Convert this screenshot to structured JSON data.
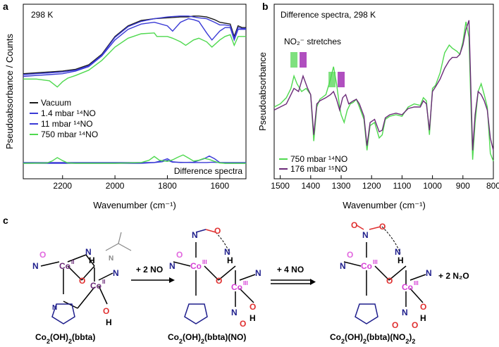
{
  "panel_labels": {
    "a": "a",
    "b": "b",
    "c": "c"
  },
  "colors": {
    "black": "#1a1a1a",
    "blue": "#3a3ad6",
    "green": "#4fd94f",
    "purple": "#6b2a78",
    "magenta": "#d63fd6",
    "highlight_green": "#7fe07f",
    "highlight_purple": "#b04fbf",
    "red": "#e03030",
    "navy": "#1e1e8c",
    "pink": "#e26adf"
  },
  "chart_data": [
    {
      "panel": "a",
      "type": "line",
      "annotation": "298 K",
      "xlabel": "Wavenumber (cm⁻¹)",
      "ylabel": "Pseudoabsorbance / Counts",
      "xlim": [
        2350,
        1500
      ],
      "x_reversed": true,
      "xticks": [
        2200,
        2000,
        1800,
        1600
      ],
      "xtick_labels": [
        "2200",
        "2000",
        "1800",
        "1600"
      ],
      "inset_label": "Difference spectra",
      "legend_position": "left-middle",
      "series": [
        {
          "name": "Vacuum",
          "color": "#1a1a1a",
          "group": "main",
          "x": [
            2350,
            2300,
            2250,
            2200,
            2150,
            2100,
            2050,
            2000,
            1950,
            1900,
            1850,
            1800,
            1750,
            1720,
            1700,
            1680,
            1650,
            1620,
            1600,
            1580,
            1560,
            1545,
            1530,
            1515,
            1500
          ],
          "y": [
            0.28,
            0.29,
            0.3,
            0.31,
            0.33,
            0.38,
            0.5,
            0.7,
            0.82,
            0.88,
            0.9,
            0.91,
            0.92,
            0.92,
            0.93,
            0.93,
            0.92,
            0.89,
            0.86,
            0.85,
            0.84,
            0.7,
            0.82,
            0.8,
            0.8
          ]
        },
        {
          "name": "1.4 mbar ¹⁴NO",
          "color": "#3a3ad6",
          "group": "main",
          "x": [
            2350,
            2300,
            2250,
            2200,
            2150,
            2100,
            2050,
            2000,
            1950,
            1900,
            1850,
            1800,
            1750,
            1720,
            1700,
            1680,
            1650,
            1620,
            1600,
            1580,
            1560,
            1545,
            1530,
            1515,
            1500
          ],
          "y": [
            0.27,
            0.28,
            0.29,
            0.3,
            0.32,
            0.37,
            0.49,
            0.69,
            0.81,
            0.87,
            0.9,
            0.92,
            0.93,
            0.93,
            0.92,
            0.91,
            0.9,
            0.86,
            0.83,
            0.83,
            0.82,
            0.68,
            0.8,
            0.79,
            0.79
          ]
        },
        {
          "name": "11 mbar ¹⁴NO",
          "color": "#3a3ad6",
          "group": "main",
          "x": [
            2350,
            2300,
            2250,
            2200,
            2150,
            2100,
            2050,
            2000,
            1950,
            1900,
            1850,
            1800,
            1780,
            1750,
            1720,
            1700,
            1680,
            1650,
            1630,
            1600,
            1580,
            1560,
            1545,
            1530,
            1500
          ],
          "y": [
            0.25,
            0.26,
            0.27,
            0.28,
            0.31,
            0.36,
            0.48,
            0.66,
            0.78,
            0.84,
            0.86,
            0.82,
            0.76,
            0.86,
            0.9,
            0.89,
            0.87,
            0.74,
            0.66,
            0.76,
            0.8,
            0.8,
            0.66,
            0.78,
            0.78
          ]
        },
        {
          "name": "750 mbar ¹⁴NO",
          "color": "#4fd94f",
          "group": "main",
          "x": [
            2350,
            2300,
            2250,
            2220,
            2200,
            2180,
            2150,
            2100,
            2050,
            2000,
            1950,
            1900,
            1850,
            1840,
            1800,
            1780,
            1750,
            1730,
            1700,
            1680,
            1650,
            1630,
            1600,
            1580,
            1560,
            1545,
            1530,
            1500
          ],
          "y": [
            0.22,
            0.22,
            0.2,
            0.13,
            0.19,
            0.23,
            0.26,
            0.32,
            0.43,
            0.58,
            0.68,
            0.73,
            0.74,
            0.7,
            0.7,
            0.68,
            0.64,
            0.6,
            0.66,
            0.68,
            0.64,
            0.58,
            0.66,
            0.7,
            0.72,
            0.6,
            0.7,
            0.7
          ]
        },
        {
          "name": "diff 1.4 mbar",
          "color": "#3a3ad6",
          "group": "difference",
          "x": [
            2350,
            2200,
            2000,
            1900,
            1850,
            1820,
            1800,
            1780,
            1700,
            1650,
            1630,
            1600,
            1500
          ],
          "y": [
            0.02,
            0.02,
            0.02,
            0.02,
            0.02,
            0.04,
            0.08,
            0.03,
            0.02,
            0.02,
            0.03,
            0.02,
            0.02
          ]
        },
        {
          "name": "diff 11 mbar",
          "color": "#3a3ad6",
          "group": "difference",
          "x": [
            2350,
            2200,
            2000,
            1900,
            1850,
            1820,
            1800,
            1780,
            1750,
            1700,
            1660,
            1640,
            1620,
            1600,
            1580,
            1500
          ],
          "y": [
            0.0,
            0.0,
            0.0,
            0.0,
            0.02,
            0.07,
            0.12,
            0.04,
            0.02,
            0.03,
            0.12,
            0.19,
            0.12,
            0.02,
            0.0,
            0.0
          ]
        },
        {
          "name": "diff 750 mbar",
          "color": "#4fd94f",
          "group": "difference",
          "x": [
            2350,
            2260,
            2240,
            2220,
            2200,
            2180,
            2150,
            2000,
            1900,
            1870,
            1850,
            1830,
            1800,
            1780,
            1760,
            1740,
            1720,
            1700,
            1680,
            1660,
            1640,
            1620,
            1600,
            1580,
            1500
          ],
          "y": [
            0.0,
            0.01,
            0.06,
            0.15,
            0.07,
            0.01,
            0.0,
            0.0,
            0.02,
            0.08,
            0.18,
            0.08,
            0.05,
            0.09,
            0.16,
            0.22,
            0.14,
            0.06,
            0.08,
            0.13,
            0.1,
            0.05,
            0.01,
            0.0,
            0.0
          ]
        }
      ]
    },
    {
      "panel": "b",
      "type": "line",
      "title": "Difference spectra, 298 K",
      "xlabel": "Wavenumber (cm⁻¹)",
      "ylabel": "Pseudoabsorbance",
      "xlim": [
        1520,
        800
      ],
      "x_reversed": true,
      "xticks": [
        1500,
        1400,
        1300,
        1200,
        1100,
        1000,
        900,
        800
      ],
      "xtick_labels": [
        "1500",
        "1400",
        "1300",
        "1200",
        "1100",
        "1000",
        "900",
        "800"
      ],
      "annotation": "NO₂⁻ stretches",
      "highlights": [
        {
          "x": 1455,
          "color": "#7fe07f"
        },
        {
          "x": 1425,
          "color": "#b04fbf"
        },
        {
          "x": 1330,
          "color": "#7fe07f"
        },
        {
          "x": 1300,
          "color": "#b04fbf"
        }
      ],
      "legend_position": "bottom-left",
      "series": [
        {
          "name": "750 mbar ¹⁴NO",
          "color": "#4fd94f",
          "x": [
            1520,
            1500,
            1480,
            1465,
            1455,
            1445,
            1430,
            1415,
            1400,
            1390,
            1380,
            1370,
            1350,
            1335,
            1325,
            1315,
            1305,
            1300,
            1290,
            1280,
            1270,
            1260,
            1250,
            1240,
            1225,
            1215,
            1205,
            1190,
            1175,
            1165,
            1155,
            1140,
            1120,
            1100,
            1080,
            1060,
            1040,
            1030,
            1020,
            1010,
            1000,
            990,
            975,
            960,
            945,
            935,
            920,
            910,
            900,
            890,
            880,
            875,
            868,
            860,
            850,
            840,
            830,
            820,
            810,
            800
          ],
          "y": [
            0.4,
            0.42,
            0.46,
            0.52,
            0.6,
            0.55,
            0.5,
            0.52,
            0.48,
            0.18,
            0.4,
            0.45,
            0.48,
            0.58,
            0.66,
            0.55,
            0.4,
            0.35,
            0.3,
            0.38,
            0.42,
            0.43,
            0.45,
            0.4,
            0.32,
            0.12,
            0.28,
            0.3,
            0.2,
            0.22,
            0.32,
            0.34,
            0.35,
            0.34,
            0.4,
            0.42,
            0.41,
            0.46,
            0.44,
            0.22,
            0.52,
            0.54,
            0.62,
            0.75,
            0.8,
            0.78,
            0.76,
            0.74,
            0.82,
            0.95,
            0.85,
            0.5,
            0.06,
            0.3,
            0.5,
            0.55,
            0.48,
            0.4,
            0.1,
            0.05
          ]
        },
        {
          "name": "176 mbar ¹⁵NO",
          "color": "#6b2a78",
          "x": [
            1520,
            1500,
            1480,
            1465,
            1455,
            1440,
            1425,
            1410,
            1400,
            1390,
            1380,
            1370,
            1350,
            1335,
            1325,
            1315,
            1305,
            1295,
            1285,
            1275,
            1260,
            1250,
            1240,
            1225,
            1215,
            1205,
            1190,
            1175,
            1165,
            1155,
            1140,
            1120,
            1100,
            1080,
            1060,
            1040,
            1030,
            1020,
            1010,
            1000,
            990,
            975,
            960,
            945,
            935,
            920,
            910,
            900,
            890,
            880,
            875,
            868,
            860,
            850,
            840,
            830,
            820,
            810,
            800
          ],
          "y": [
            0.38,
            0.4,
            0.42,
            0.48,
            0.52,
            0.5,
            0.6,
            0.52,
            0.48,
            0.22,
            0.42,
            0.44,
            0.46,
            0.48,
            0.5,
            0.45,
            0.38,
            0.46,
            0.48,
            0.42,
            0.44,
            0.45,
            0.42,
            0.34,
            0.15,
            0.3,
            0.32,
            0.24,
            0.25,
            0.33,
            0.35,
            0.36,
            0.35,
            0.39,
            0.4,
            0.4,
            0.44,
            0.42,
            0.25,
            0.5,
            0.53,
            0.58,
            0.65,
            0.7,
            0.72,
            0.72,
            0.74,
            0.8,
            0.9,
            0.96,
            0.6,
            0.12,
            0.35,
            0.5,
            0.48,
            0.44,
            0.38,
            0.2,
            0.12
          ]
        }
      ]
    }
  ],
  "scheme": {
    "compounds": [
      {
        "name_parts": [
          [
            "Co",
            ""
          ],
          [
            "2",
            "sub"
          ],
          [
            "(OH)",
            ""
          ],
          [
            "2",
            "sub"
          ],
          [
            "(bbta)",
            ""
          ]
        ]
      },
      {
        "name_parts": [
          [
            "Co",
            ""
          ],
          [
            "2",
            "sub"
          ],
          [
            "(OH)",
            ""
          ],
          [
            "2",
            "sub"
          ],
          [
            "(bbta)(NO)",
            ""
          ]
        ]
      },
      {
        "name_parts": [
          [
            "Co",
            ""
          ],
          [
            "2",
            "sub"
          ],
          [
            "(OH)",
            ""
          ],
          [
            "2",
            "sub"
          ],
          [
            "(bbta)(NO",
            ""
          ],
          [
            "2",
            "sub"
          ],
          [
            ")",
            ""
          ],
          [
            "2",
            "sub"
          ]
        ]
      }
    ],
    "arrow1_label": "+ 2 NO",
    "arrow2_label": "+ 4 NO",
    "byproduct": "+ 2 N₂O",
    "atoms": {
      "Co": "Co",
      "O": "O",
      "N": "N",
      "H": "H",
      "II": "II",
      "III": "III"
    }
  }
}
